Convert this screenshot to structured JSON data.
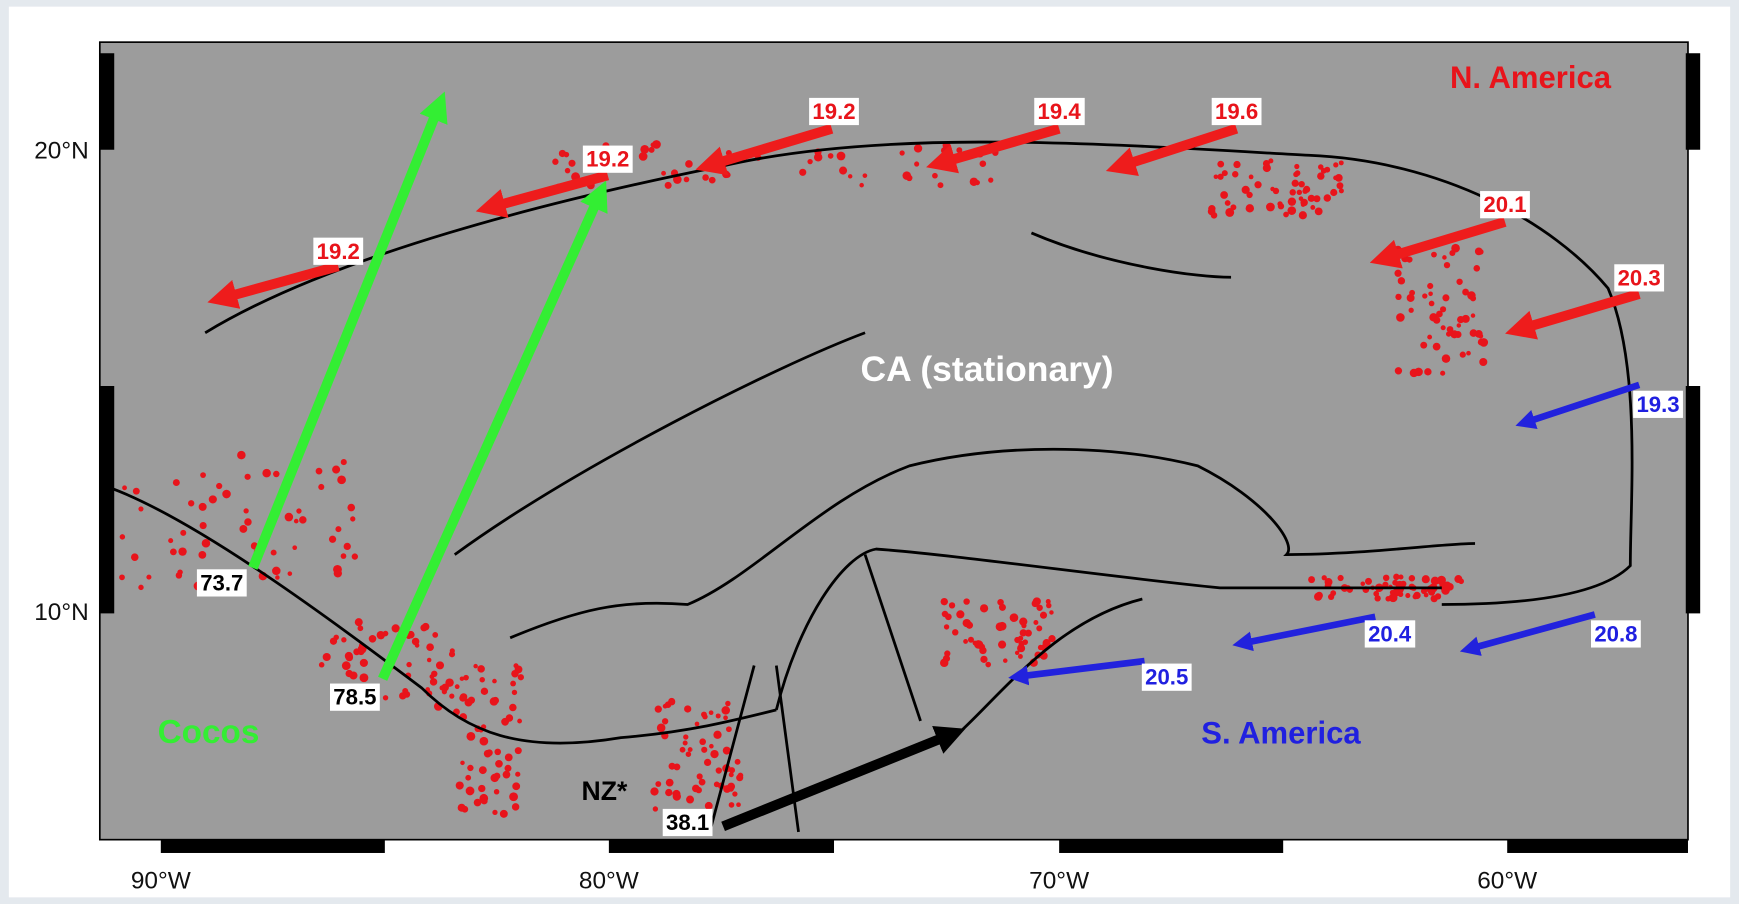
{
  "axes": {
    "x_ticks": [
      "90°W",
      "80°W",
      "70°W",
      "60°W"
    ],
    "y_ticks": [
      "20°N",
      "10°N"
    ]
  },
  "plates": {
    "north_america": "N. America",
    "caribbean": "CA (stationary)",
    "south_america": "S. America",
    "cocos": "Cocos",
    "nazca": "NZ*"
  },
  "velocities": {
    "north": [
      "19.2",
      "19.4",
      "19.6",
      "19.2",
      "19.2",
      "20.1",
      "20.3"
    ],
    "south": [
      "19.3",
      "20.4",
      "20.8",
      "20.5"
    ],
    "cocos": [
      "73.7",
      "78.5"
    ],
    "nazca": [
      "38.1"
    ]
  }
}
